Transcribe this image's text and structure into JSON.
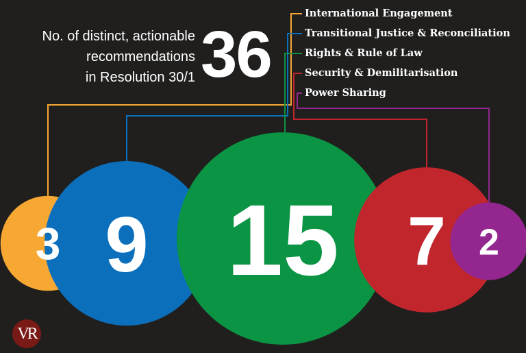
{
  "header": {
    "title_lines": [
      "No. of distinct, actionable",
      "recommendations",
      "in Resolution 30/1"
    ],
    "total": "36"
  },
  "chart_data": {
    "type": "bubble",
    "title": "No. of distinct, actionable recommendations in Resolution 30/1",
    "total": 36,
    "series": [
      {
        "name": "International Engagement",
        "value": 3,
        "color": "#f7a833"
      },
      {
        "name": "Transitional Justice & Reconciliation",
        "value": 9,
        "color": "#0b6fbc"
      },
      {
        "name": "Rights & Rule of Law",
        "value": 15,
        "color": "#0a9443"
      },
      {
        "name": "Security & Demilitarisation",
        "value": 7,
        "color": "#c1262d"
      },
      {
        "name": "Power Sharing",
        "value": 2,
        "color": "#93278f"
      }
    ]
  },
  "logo": {
    "text": "VR"
  }
}
